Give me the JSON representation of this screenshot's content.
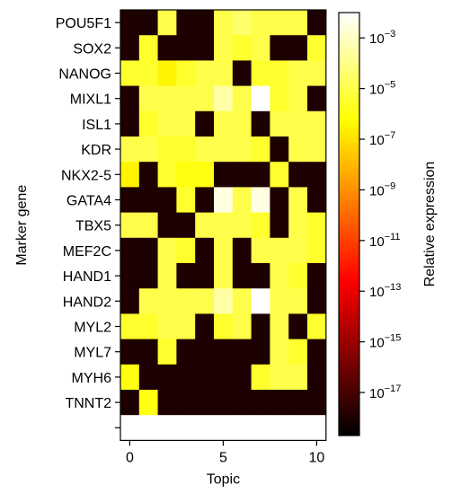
{
  "chart_data": {
    "type": "heatmap",
    "xlabel": "Topic",
    "ylabel": "Marker gene",
    "colorbar_label": "Relative expression",
    "colormap": "hot",
    "color_scale": "log",
    "genes": [
      "POU5F1",
      "SOX2",
      "NANOG",
      "MIXL1",
      "ISL1",
      "KDR",
      "NKX2-5",
      "GATA4",
      "TBX5",
      "MEF2C",
      "HAND1",
      "HAND2",
      "MYL2",
      "MYL7",
      "MYH6",
      "TNNT2",
      ""
    ],
    "x_ticks": [
      0,
      5,
      10
    ],
    "x_tick_labels": [
      "0",
      "5",
      "10"
    ],
    "x_range": [
      0,
      10
    ],
    "colorbar_ticks": [
      {
        "exp": -3,
        "label": "10",
        "sup": "−3"
      },
      {
        "exp": -5,
        "label": "10",
        "sup": "−5"
      },
      {
        "exp": -7,
        "label": "10",
        "sup": "−7"
      },
      {
        "exp": -9,
        "label": "10",
        "sup": "−9"
      },
      {
        "exp": -11,
        "label": "10",
        "sup": "−11"
      },
      {
        "exp": -13,
        "label": "10",
        "sup": "−13"
      },
      {
        "exp": -15,
        "label": "10",
        "sup": "−15"
      },
      {
        "exp": -17,
        "label": "10",
        "sup": "−17"
      }
    ],
    "colorbar_range_log10": [
      -18.7,
      -2.0
    ],
    "values_log10": [
      [
        -18,
        -18,
        -5,
        -18,
        -18,
        -5,
        -4.5,
        -5,
        -5,
        -5,
        -18
      ],
      [
        -18,
        -5.5,
        -18,
        -18,
        -18,
        -5,
        -5.5,
        -5,
        -18,
        -18,
        -5.5
      ],
      [
        -5.5,
        -5.5,
        -6.5,
        -5.5,
        -5,
        -5,
        -18,
        -5.5,
        -5.5,
        -5,
        -5
      ],
      [
        -18,
        -5,
        -5,
        -5,
        -5,
        -3.5,
        -5,
        -2,
        -5.5,
        -5,
        -18
      ],
      [
        -18,
        -5.5,
        -5,
        -5,
        -18,
        -5,
        -5,
        -18,
        -5,
        -5,
        -5
      ],
      [
        -5,
        -5,
        -5.5,
        -5.5,
        -5,
        -5,
        -5,
        -5.5,
        -18,
        -5,
        -5
      ],
      [
        -6.5,
        -18,
        -5.5,
        -6,
        -6,
        -18,
        -18,
        -18,
        -5.5,
        -18,
        -18
      ],
      [
        -18,
        -18,
        -18,
        -5.5,
        -18,
        -2.5,
        -5,
        -2.5,
        -18,
        -5,
        -18
      ],
      [
        -5,
        -5,
        -18,
        -18,
        -5,
        -5,
        -5,
        -5.5,
        -18,
        -5,
        -5.5
      ],
      [
        -18,
        -18,
        -5,
        -5.5,
        -18,
        -5,
        -18,
        -5,
        -5,
        -5,
        -5.5
      ],
      [
        -18,
        -18,
        -5,
        -18,
        -18,
        -5,
        -18,
        -18,
        -5,
        -5.5,
        -18
      ],
      [
        -18,
        -5,
        -5,
        -5,
        -5,
        -3.5,
        -5,
        -2,
        -5,
        -5,
        -18
      ],
      [
        -5.5,
        -5.5,
        -5,
        -5,
        -18,
        -5.5,
        -5,
        -18,
        -5,
        -18,
        -5.5
      ],
      [
        -18,
        -18,
        -5.5,
        -18,
        -18,
        -18,
        -18,
        -18,
        -5,
        -5.5,
        -18
      ],
      [
        -6,
        -18,
        -18,
        -18,
        -18,
        -18,
        -18,
        -5.5,
        -5,
        -5,
        -18
      ],
      [
        -18,
        -6,
        -18,
        -18,
        -18,
        -18,
        -18,
        -18,
        -18,
        -18,
        -18
      ],
      [
        null,
        null,
        null,
        null,
        null,
        null,
        null,
        null,
        null,
        null,
        null
      ]
    ]
  }
}
